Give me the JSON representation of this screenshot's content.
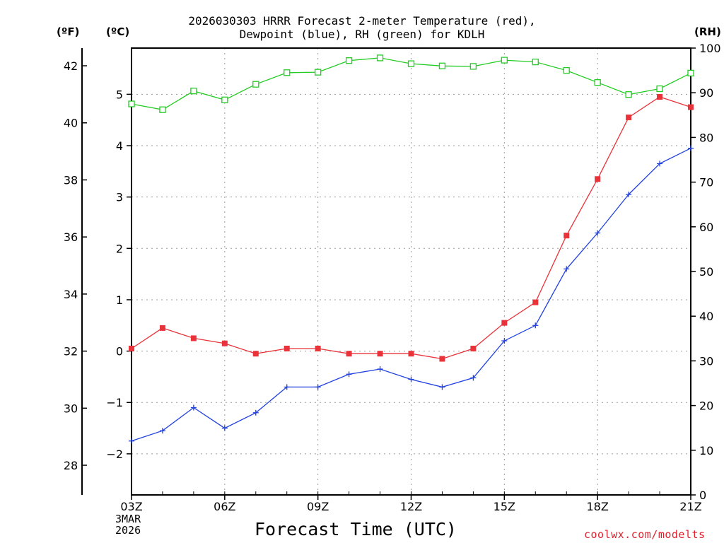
{
  "chart_data": {
    "type": "line",
    "title_line1": "2026030303 HRRR Forecast 2-meter Temperature (red),",
    "title_line2": "Dewpoint (blue), RH (green) for KDLH",
    "xlabel": "Forecast Time (UTC)",
    "unit_f": "(ºF)",
    "unit_c": "(ºC)",
    "unit_rh": "(RH)",
    "date_line1": "3MAR",
    "date_line2": "2026",
    "credit": "coolwx.com/modelts",
    "x_hours": [
      3,
      4,
      5,
      6,
      7,
      8,
      9,
      10,
      11,
      12,
      13,
      14,
      15,
      16,
      17,
      18,
      19,
      20,
      21
    ],
    "x_ticks": [
      {
        "hour": 3,
        "label": "03Z"
      },
      {
        "hour": 6,
        "label": "06Z"
      },
      {
        "hour": 9,
        "label": "09Z"
      },
      {
        "hour": 12,
        "label": "12Z"
      },
      {
        "hour": 15,
        "label": "15Z"
      },
      {
        "hour": 18,
        "label": "18Z"
      },
      {
        "hour": 21,
        "label": "21Z"
      }
    ],
    "xlim": [
      3,
      21
    ],
    "ylim_c": [
      -2.8,
      5.9
    ],
    "ylim_rh": [
      0,
      100
    ],
    "y_ticks_c": [
      -2,
      -1,
      0,
      1,
      2,
      3,
      4,
      5
    ],
    "y_ticks_f": [
      28,
      30,
      32,
      34,
      36,
      38,
      40,
      42
    ],
    "y_ticks_rh": [
      0,
      10,
      20,
      30,
      40,
      50,
      60,
      70,
      80,
      90,
      100
    ],
    "series": [
      {
        "name": "Temperature",
        "axis": "celsius",
        "color": "#e8333a",
        "marker": "filled-square",
        "values": [
          0.05,
          0.45,
          0.25,
          0.15,
          -0.05,
          0.05,
          0.05,
          -0.05,
          -0.05,
          -0.05,
          -0.15,
          0.05,
          0.55,
          0.95,
          2.25,
          3.35,
          4.55,
          4.95,
          4.75
        ]
      },
      {
        "name": "Dewpoint",
        "axis": "celsius",
        "color": "#2040e0",
        "marker": "plus",
        "values": [
          -1.75,
          -1.55,
          -1.1,
          -1.5,
          -1.2,
          -0.7,
          -0.7,
          -0.45,
          -0.35,
          -0.55,
          -0.7,
          -0.52,
          0.2,
          0.5,
          1.6,
          2.3,
          3.05,
          3.65,
          3.95
        ]
      },
      {
        "name": "RH",
        "axis": "rh",
        "color": "#22cc22",
        "marker": "open-square",
        "values": [
          87.5,
          86.2,
          90.4,
          88.4,
          91.9,
          94.5,
          94.6,
          97.2,
          97.8,
          96.5,
          96.0,
          95.9,
          97.3,
          96.9,
          95.0,
          92.3,
          89.6,
          90.9,
          94.4
        ]
      }
    ]
  }
}
